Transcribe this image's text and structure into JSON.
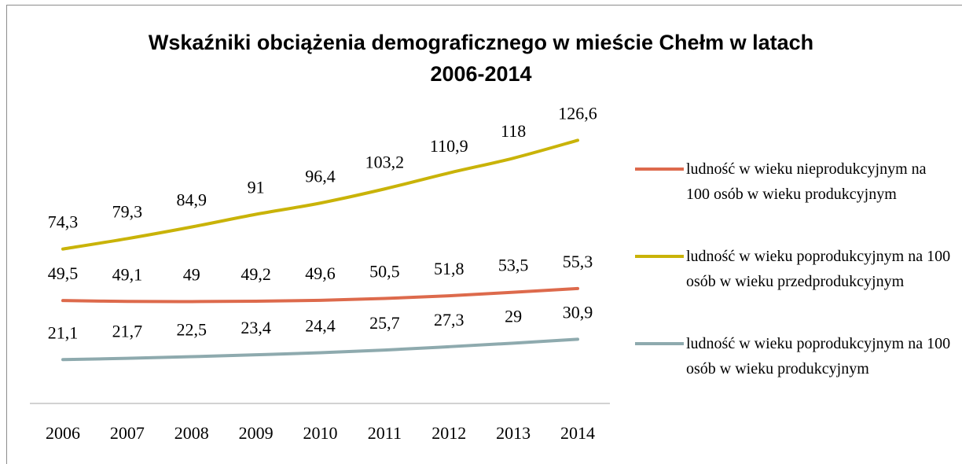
{
  "chart_data": {
    "type": "line",
    "title": "Wskaźniki obciążenia demograficznego w mieście Chełm w latach 2006-2014",
    "categories": [
      "2006",
      "2007",
      "2008",
      "2009",
      "2010",
      "2011",
      "2012",
      "2013",
      "2014"
    ],
    "ylim": [
      0,
      140
    ],
    "legend": "right",
    "series": [
      {
        "name": "ludność w wieku nieprodukcyjnym na 100 osób w wieku produkcyjnym",
        "color": "#dd6a4c",
        "values": [
          49.5,
          49.1,
          49,
          49.2,
          49.6,
          50.5,
          51.8,
          53.5,
          55.3
        ],
        "value_labels": [
          "49,5",
          "49,1",
          "49",
          "49,2",
          "49,6",
          "50,5",
          "51,8",
          "53,5",
          "55,3"
        ]
      },
      {
        "name": "ludność w wieku poprodukcyjnym na 100 osób w wieku przedprodukcyjnym",
        "color": "#c9b308",
        "values": [
          74.3,
          79.3,
          84.9,
          91,
          96.4,
          103.2,
          110.9,
          118,
          126.6
        ],
        "value_labels": [
          "74,3",
          "79,3",
          "84,9",
          "91",
          "96,4",
          "103,2",
          "110,9",
          "118",
          "126,6"
        ]
      },
      {
        "name": "ludność w wieku poprodukcyjnym na 100 osób w wieku produkcyjnym",
        "color": "#8eaaae",
        "values": [
          21.1,
          21.7,
          22.5,
          23.4,
          24.4,
          25.7,
          27.3,
          29,
          30.9
        ],
        "value_labels": [
          "21,1",
          "21,7",
          "22,5",
          "23,4",
          "24,4",
          "25,7",
          "27,3",
          "29",
          "30,9"
        ]
      }
    ]
  }
}
